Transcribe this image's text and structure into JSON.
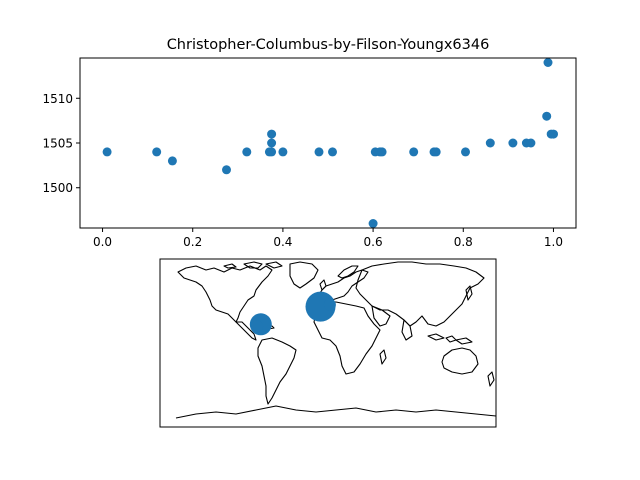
{
  "colors": {
    "marker": "#1f77b4",
    "axes": "#000000",
    "background": "#ffffff"
  },
  "chart_data": [
    {
      "type": "scatter",
      "title": "Christopher-Columbus-by-Filson-Youngx6346",
      "xlabel": "",
      "ylabel": "",
      "xlim": [
        -0.05,
        1.05
      ],
      "ylim": [
        1495.5,
        1514.5
      ],
      "xticks": [
        0.0,
        0.2,
        0.4,
        0.6,
        0.8,
        1.0
      ],
      "xtick_labels": [
        "0.0",
        "0.2",
        "0.4",
        "0.6",
        "0.8",
        "1.0"
      ],
      "yticks": [
        1500,
        1505,
        1510
      ],
      "ytick_labels": [
        "1500",
        "1505",
        "1510"
      ],
      "grid": false,
      "points": [
        {
          "x": 0.01,
          "y": 1504
        },
        {
          "x": 0.12,
          "y": 1504
        },
        {
          "x": 0.155,
          "y": 1503
        },
        {
          "x": 0.275,
          "y": 1502
        },
        {
          "x": 0.32,
          "y": 1504
        },
        {
          "x": 0.37,
          "y": 1504
        },
        {
          "x": 0.375,
          "y": 1506
        },
        {
          "x": 0.375,
          "y": 1505
        },
        {
          "x": 0.375,
          "y": 1504
        },
        {
          "x": 0.4,
          "y": 1504
        },
        {
          "x": 0.48,
          "y": 1504
        },
        {
          "x": 0.51,
          "y": 1504
        },
        {
          "x": 0.6,
          "y": 1496
        },
        {
          "x": 0.605,
          "y": 1504
        },
        {
          "x": 0.615,
          "y": 1504
        },
        {
          "x": 0.62,
          "y": 1504
        },
        {
          "x": 0.69,
          "y": 1504
        },
        {
          "x": 0.735,
          "y": 1504
        },
        {
          "x": 0.74,
          "y": 1504
        },
        {
          "x": 0.805,
          "y": 1504
        },
        {
          "x": 0.86,
          "y": 1505
        },
        {
          "x": 0.91,
          "y": 1505
        },
        {
          "x": 0.94,
          "y": 1505
        },
        {
          "x": 0.95,
          "y": 1505
        },
        {
          "x": 0.985,
          "y": 1508
        },
        {
          "x": 0.988,
          "y": 1514
        },
        {
          "x": 0.995,
          "y": 1506
        },
        {
          "x": 1.0,
          "y": 1506
        }
      ]
    },
    {
      "type": "map-bubble",
      "projection": "plate-carree",
      "lon_range": [
        -180,
        180
      ],
      "lat_range": [
        -90,
        90
      ],
      "bubbles": [
        {
          "lon": -8,
          "lat": 39,
          "size": "large"
        },
        {
          "lon": 2,
          "lat": 41,
          "size": "small"
        },
        {
          "lon": -72,
          "lat": 20,
          "size": "medium"
        },
        {
          "lon": -76,
          "lat": 18,
          "size": "small"
        }
      ]
    }
  ]
}
